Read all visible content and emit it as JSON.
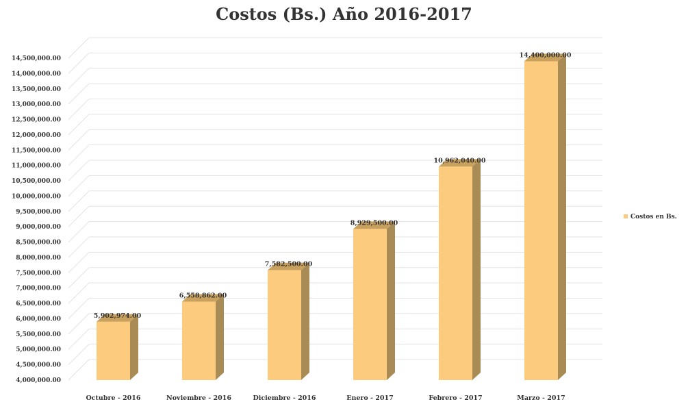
{
  "chart_data": {
    "type": "bar",
    "title": "Costos (Bs.) Año 2016-2017",
    "xlabel": "",
    "ylabel": "",
    "categories": [
      "Octubre - 2016",
      "Noviembre - 2016",
      "Diciembre - 2016",
      "Enero - 2017",
      "Febrero - 2017",
      "Marzo - 2017"
    ],
    "series": [
      {
        "name": "Costos en Bs.",
        "values": [
          5902974,
          6558862,
          7582500,
          8929500,
          10962040,
          14400000
        ],
        "labels": [
          "5,902,974.00",
          "6,558,862.00",
          "7,582,500.00",
          "8,929,500.00",
          "10,962,040.00",
          "14,400,000.00"
        ],
        "color": "#FDCB7E",
        "side_color": "#A98B55",
        "top_color": "#C9A15E"
      }
    ],
    "ylim": [
      4000000,
      14500000
    ],
    "y_ticks": [
      "4,000,000.00",
      "4,500,000.00",
      "5,000,000.00",
      "5,500,000.00",
      "6,000,000.00",
      "6,500,000.00",
      "7,000,000.00",
      "7,500,000.00",
      "8,000,000.00",
      "8,500,000.00",
      "9,000,000.00",
      "9,500,000.00",
      "10,000,000.00",
      "10,500,000.00",
      "11,000,000.00",
      "11,500,000.00",
      "12,000,000.00",
      "12,500,000.00",
      "13,000,000.00",
      "13,500,000.00",
      "14,000,000.00",
      "14,500,000.00"
    ],
    "grid": true,
    "style": "3d-column",
    "legend_position": "right",
    "grid_color": "#E3E3E3",
    "text_color": "#333333"
  }
}
